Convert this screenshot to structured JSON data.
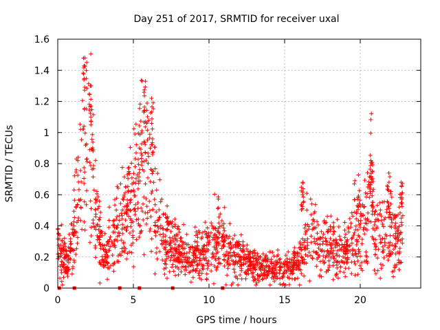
{
  "chart_data": {
    "type": "scatter",
    "title": "Day 251 of 2017, SRMTID for receiver uxal",
    "xlabel": "GPS time / hours",
    "ylabel": "SRMTID / TECUs",
    "xlim": [
      0,
      24
    ],
    "ylim": [
      0,
      1.6
    ],
    "xticks": [
      0,
      5,
      10,
      15,
      20
    ],
    "xtick_labels": [
      "0",
      "5",
      "10",
      "15",
      "20"
    ],
    "yticks": [
      0,
      0.2,
      0.4,
      0.6,
      0.8,
      1,
      1.2,
      1.4,
      1.6
    ],
    "ytick_labels": [
      "0",
      "0.2",
      "0.4",
      "0.6",
      "0.8",
      "1",
      "1.2",
      "1.4",
      "1.6"
    ],
    "grid": true,
    "marker": "+",
    "series_color": "#ff0000",
    "zero_markers_x": [
      0.1,
      1.1,
      4.1,
      5.4,
      7.6,
      10.9
    ],
    "trend": {
      "x": [
        0,
        0.3,
        0.6,
        1.0,
        1.3,
        1.6,
        1.9,
        2.1,
        2.4,
        2.7,
        3.0,
        3.3,
        3.6,
        4.0,
        4.4,
        4.8,
        5.2,
        5.5,
        5.8,
        6.1,
        6.5,
        6.9,
        7.3,
        7.7,
        8.2,
        8.7,
        9.2,
        9.7,
        10.2,
        10.6,
        11.0,
        11.5,
        12.0,
        12.5,
        13.0,
        13.5,
        14.0,
        14.5,
        15.0,
        15.5,
        16.0,
        16.4,
        16.8,
        17.2,
        17.6,
        18.0,
        18.4,
        18.8,
        19.2,
        19.6,
        20.0,
        20.4,
        20.7,
        21.0,
        21.4,
        21.8,
        22.2,
        22.6,
        22.8
      ],
      "y": [
        0.25,
        0.2,
        0.2,
        0.25,
        0.6,
        0.8,
        0.85,
        0.85,
        0.6,
        0.35,
        0.2,
        0.22,
        0.3,
        0.4,
        0.45,
        0.55,
        0.7,
        0.75,
        0.7,
        0.6,
        0.5,
        0.35,
        0.3,
        0.25,
        0.22,
        0.2,
        0.22,
        0.25,
        0.3,
        0.35,
        0.25,
        0.2,
        0.2,
        0.15,
        0.14,
        0.13,
        0.13,
        0.13,
        0.13,
        0.15,
        0.18,
        0.3,
        0.35,
        0.3,
        0.3,
        0.3,
        0.25,
        0.2,
        0.25,
        0.35,
        0.45,
        0.4,
        0.6,
        0.3,
        0.35,
        0.4,
        0.35,
        0.25,
        0.45
      ]
    },
    "peaks": [
      {
        "x": 1.8,
        "y": 1.48
      },
      {
        "x": 2.2,
        "y": 1.3
      },
      {
        "x": 5.8,
        "y": 1.33
      },
      {
        "x": 6.2,
        "y": 1.22
      },
      {
        "x": 20.7,
        "y": 0.82
      },
      {
        "x": 21.9,
        "y": 0.68
      },
      {
        "x": 22.7,
        "y": 0.68
      },
      {
        "x": 16.2,
        "y": 0.68
      }
    ]
  }
}
